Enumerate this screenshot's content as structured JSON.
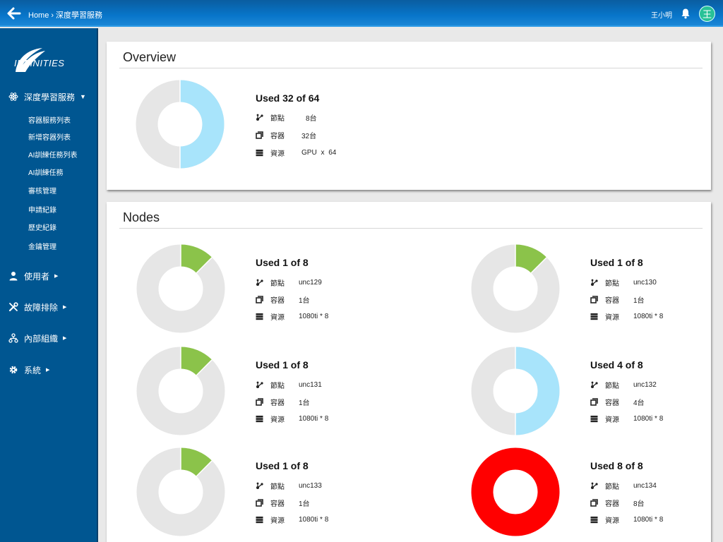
{
  "topbar": {
    "breadcrumb": [
      "Home",
      "深度學習服務"
    ],
    "separator": "›",
    "username": "王小明",
    "avatar_letter": "王",
    "avatar_color": "#28c197"
  },
  "sidebar": {
    "logo_text": "INFINITIES",
    "sections": [
      {
        "label": "深度學習服務",
        "icon": "atom-icon",
        "expanded": true,
        "items": [
          "容器服務列表",
          "新增容器列表",
          "AI訓練任務列表",
          "AI訓練任務",
          "審核管理",
          "申請紀錄",
          "歷史紀錄",
          "金鑰管理"
        ]
      },
      {
        "label": "使用者",
        "icon": "user-icon",
        "expanded": false
      },
      {
        "label": "故障排除",
        "icon": "tools-icon",
        "expanded": false
      },
      {
        "label": "內部組織",
        "icon": "org-icon",
        "expanded": false
      },
      {
        "label": "系統",
        "icon": "gear-icon",
        "expanded": false
      }
    ]
  },
  "labels": {
    "node": "節點",
    "container": "容器",
    "resource": "資源"
  },
  "overview": {
    "title": "Overview",
    "used": 32,
    "total": 64,
    "used_text": "Used 32 of 64",
    "node_value": "8台",
    "container_value": "32台",
    "resource_value": "GPU x 64",
    "fill_color": "#a8e4fb"
  },
  "nodes_section": {
    "title": "Nodes",
    "nodes": [
      {
        "used": 1,
        "total": 8,
        "used_text": "Used 1 of 8",
        "node": "unc129",
        "container": "1台",
        "resource": "1080ti * 8",
        "fill_color": "#8bc34a"
      },
      {
        "used": 1,
        "total": 8,
        "used_text": "Used 1 of 8",
        "node": "unc130",
        "container": "1台",
        "resource": "1080ti * 8",
        "fill_color": "#8bc34a"
      },
      {
        "used": 1,
        "total": 8,
        "used_text": "Used 1 of 8",
        "node": "unc131",
        "container": "1台",
        "resource": "1080ti * 8",
        "fill_color": "#8bc34a"
      },
      {
        "used": 4,
        "total": 8,
        "used_text": "Used 4 of 8",
        "node": "unc132",
        "container": "4台",
        "resource": "1080ti * 8",
        "fill_color": "#a8e4fb"
      },
      {
        "used": 1,
        "total": 8,
        "used_text": "Used 1 of 8",
        "node": "unc133",
        "container": "1台",
        "resource": "1080ti * 8",
        "fill_color": "#8bc34a"
      },
      {
        "used": 8,
        "total": 8,
        "used_text": "Used 8 of 8",
        "node": "unc134",
        "container": "8台",
        "resource": "1080ti * 8",
        "fill_color": "#ff0000"
      }
    ]
  },
  "colors": {
    "empty_ring": "#e6e6e6",
    "topbar": "#0875c9",
    "sidebar": "#005691"
  }
}
